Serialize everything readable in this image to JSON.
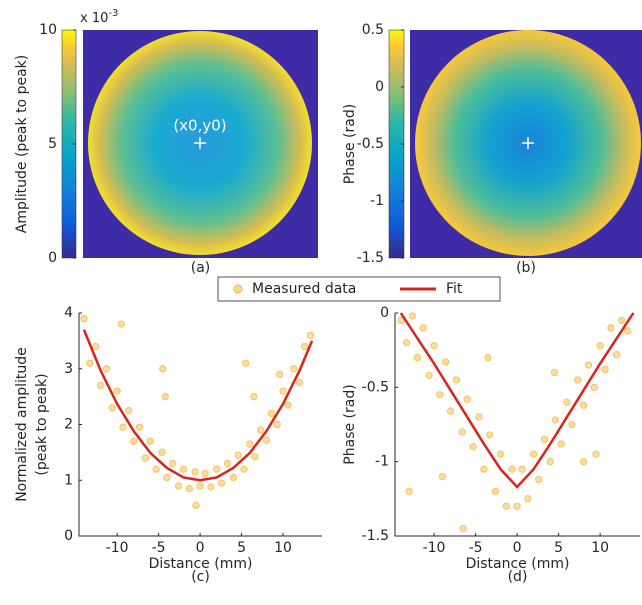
{
  "chart_data": [
    {
      "type": "heatmap",
      "caption": "(a)",
      "colorbar_label": "Amplitude (peak to peak)",
      "scale_label": "x 10",
      "scale_exponent": "-3",
      "annotation": "(x0,y0)",
      "clim": [
        0,
        10
      ],
      "cticks": [
        0,
        5,
        10
      ]
    },
    {
      "type": "heatmap",
      "caption": "(b)",
      "colorbar_label": "Phase (rad)",
      "clim": [
        -1.5,
        0.5
      ],
      "cticks": [
        -1.5,
        -1,
        -0.5,
        0,
        0.5
      ]
    },
    {
      "type": "scatter",
      "caption": "(c)",
      "xlabel": "Distance (mm)",
      "ylabel": [
        "Normalized amplitude",
        "(peak to peak)"
      ],
      "xlim": [
        -14.6,
        14.7
      ],
      "ylim": [
        0,
        4
      ],
      "xticks": [
        -10,
        -5,
        0,
        5,
        10
      ],
      "yticks": [
        0,
        1,
        2,
        3,
        4
      ],
      "series": [
        {
          "name": "Measured data",
          "color": "#f6b330",
          "x": [
            -14,
            -13.3,
            -12.6,
            -12,
            -11.3,
            -10.6,
            -10,
            -9.3,
            -8.6,
            -8,
            -7.3,
            -6.6,
            -6,
            -5.3,
            -4.6,
            -4,
            -3.3,
            -2.6,
            -2,
            -1.3,
            -0.6,
            0,
            0.6,
            1.3,
            2,
            2.6,
            3.3,
            4,
            4.6,
            5.3,
            6,
            6.6,
            7.3,
            8,
            8.6,
            9.3,
            10,
            10.6,
            11.3,
            12,
            12.6,
            13.3,
            -4.5,
            -4.2,
            -9.5,
            5.5,
            6.5,
            9.6,
            -0.5
          ],
          "values": [
            3.9,
            3.1,
            3.4,
            2.7,
            3.0,
            2.3,
            2.6,
            1.95,
            2.25,
            1.7,
            1.95,
            1.4,
            1.7,
            1.2,
            1.5,
            1.05,
            1.3,
            0.9,
            1.2,
            0.85,
            1.15,
            0.9,
            1.12,
            0.88,
            1.2,
            0.95,
            1.3,
            1.05,
            1.45,
            1.2,
            1.65,
            1.42,
            1.9,
            1.72,
            2.2,
            2.0,
            2.6,
            2.35,
            3.0,
            2.75,
            3.4,
            3.6,
            3.0,
            2.5,
            3.8,
            3.1,
            2.5,
            2.9,
            0.55
          ]
        },
        {
          "name": "Fit",
          "color": "#d9241c",
          "x": [
            -14,
            -12,
            -10,
            -8,
            -6,
            -4,
            -2,
            0,
            2,
            4,
            6,
            8,
            10,
            12,
            13.5
          ],
          "values": [
            3.7,
            2.97,
            2.37,
            1.88,
            1.49,
            1.22,
            1.05,
            1.0,
            1.05,
            1.22,
            1.49,
            1.88,
            2.37,
            2.97,
            3.5
          ]
        }
      ]
    },
    {
      "type": "scatter",
      "caption": "(d)",
      "xlabel": "Distance (mm)",
      "ylabel": [
        "Phase (rad)"
      ],
      "xlim": [
        -14.7,
        14.8
      ],
      "ylim": [
        -1.5,
        0
      ],
      "xticks": [
        -10,
        -5,
        0,
        5,
        10
      ],
      "yticks": [
        -1.5,
        -1,
        -0.5,
        0
      ],
      "series": [
        {
          "color": "#f6b330",
          "x": [
            -14,
            -13.3,
            -12.6,
            -12,
            -11.3,
            -10.6,
            -10,
            -9.3,
            -8.6,
            -8,
            -7.3,
            -6.6,
            -6,
            -5.3,
            -4.6,
            -4,
            -3.3,
            -2.6,
            -2,
            -1.3,
            -0.6,
            0,
            0.6,
            1.3,
            2,
            2.6,
            3.3,
            4,
            4.6,
            5.3,
            6,
            6.6,
            7.3,
            8,
            8.6,
            9.3,
            10,
            10.6,
            11.3,
            12,
            12.6,
            13.3,
            -13,
            -6.5,
            -3.5,
            4.5,
            9.5,
            8,
            -9
          ],
          "values": [
            -0.05,
            -0.2,
            -0.02,
            -0.3,
            -0.1,
            -0.42,
            -0.22,
            -0.55,
            -0.33,
            -0.66,
            -0.45,
            -0.8,
            -0.58,
            -0.9,
            -0.7,
            -1.05,
            -0.82,
            -1.2,
            -0.95,
            -1.3,
            -1.05,
            -1.3,
            -1.05,
            -1.25,
            -0.95,
            -1.12,
            -0.85,
            -1.0,
            -0.72,
            -0.88,
            -0.6,
            -0.75,
            -0.45,
            -0.62,
            -0.35,
            -0.5,
            -0.22,
            -0.38,
            -0.1,
            -0.28,
            -0.05,
            -0.12,
            -1.2,
            -1.45,
            -0.3,
            -0.4,
            -0.95,
            -1.0,
            -1.1
          ]
        },
        {
          "color": "#d9241c",
          "x": [
            -14,
            -12,
            -10,
            -8,
            -6,
            -4,
            -2,
            0,
            2,
            4,
            6,
            8,
            10,
            12,
            14
          ],
          "values": [
            0,
            -0.17,
            -0.34,
            -0.52,
            -0.7,
            -0.88,
            -1.05,
            -1.17,
            -1.05,
            -0.88,
            -0.7,
            -0.52,
            -0.34,
            -0.17,
            0
          ]
        }
      ]
    }
  ]
}
